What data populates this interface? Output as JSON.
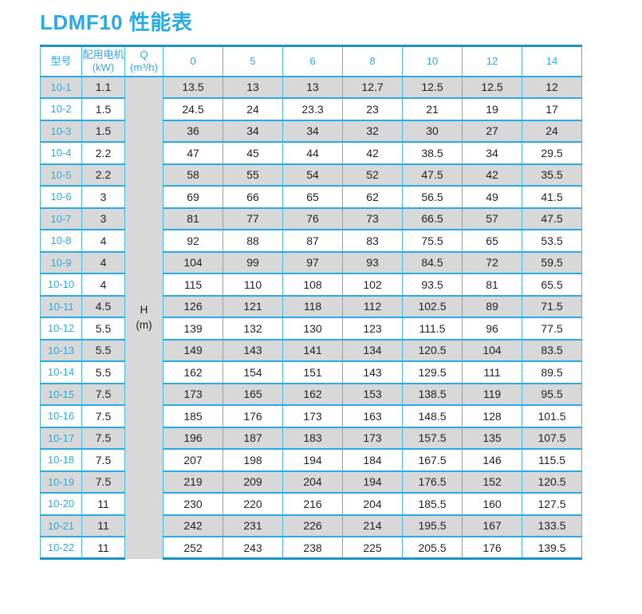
{
  "title": "LDMF10 性能表",
  "colors": {
    "accent": "#29abe2",
    "grid_line": "#4cb6e5",
    "thick_border": "#1b92c7",
    "row_shade": "#d8d8d8",
    "text_dark": "#231f20"
  },
  "table": {
    "model_header": "型号",
    "motor_header_line1": "配用电机",
    "motor_header_line2": "(kW)",
    "flow_header_line1": "Q",
    "flow_header_line2": "(m³/h)",
    "flow_columns": [
      "0",
      "5",
      "6",
      "8",
      "10",
      "12",
      "14"
    ],
    "h_label_line1": "H",
    "h_label_line2": "(m)",
    "rows": [
      {
        "model": "10-1",
        "kw": "1.1",
        "values": [
          "13.5",
          "13",
          "13",
          "12.7",
          "12.5",
          "12.5",
          "12"
        ]
      },
      {
        "model": "10-2",
        "kw": "1.5",
        "values": [
          "24.5",
          "24",
          "23.3",
          "23",
          "21",
          "19",
          "17"
        ]
      },
      {
        "model": "10-3",
        "kw": "1.5",
        "values": [
          "36",
          "34",
          "34",
          "32",
          "30",
          "27",
          "24"
        ]
      },
      {
        "model": "10-4",
        "kw": "2.2",
        "values": [
          "47",
          "45",
          "44",
          "42",
          "38.5",
          "34",
          "29.5"
        ]
      },
      {
        "model": "10-5",
        "kw": "2.2",
        "values": [
          "58",
          "55",
          "54",
          "52",
          "47.5",
          "42",
          "35.5"
        ]
      },
      {
        "model": "10-6",
        "kw": "3",
        "values": [
          "69",
          "66",
          "65",
          "62",
          "56.5",
          "49",
          "41.5"
        ]
      },
      {
        "model": "10-7",
        "kw": "3",
        "values": [
          "81",
          "77",
          "76",
          "73",
          "66.5",
          "57",
          "47.5"
        ]
      },
      {
        "model": "10-8",
        "kw": "4",
        "values": [
          "92",
          "88",
          "87",
          "83",
          "75.5",
          "65",
          "53.5"
        ]
      },
      {
        "model": "10-9",
        "kw": "4",
        "values": [
          "104",
          "99",
          "97",
          "93",
          "84.5",
          "72",
          "59.5"
        ]
      },
      {
        "model": "10-10",
        "kw": "4",
        "values": [
          "115",
          "110",
          "108",
          "102",
          "93.5",
          "81",
          "65.5"
        ]
      },
      {
        "model": "10-11",
        "kw": "4.5",
        "values": [
          "126",
          "121",
          "118",
          "112",
          "102.5",
          "89",
          "71.5"
        ]
      },
      {
        "model": "10-12",
        "kw": "5.5",
        "values": [
          "139",
          "132",
          "130",
          "123",
          "111.5",
          "96",
          "77.5"
        ]
      },
      {
        "model": "10-13",
        "kw": "5.5",
        "values": [
          "149",
          "143",
          "141",
          "134",
          "120.5",
          "104",
          "83.5"
        ]
      },
      {
        "model": "10-14",
        "kw": "5.5",
        "values": [
          "162",
          "154",
          "151",
          "143",
          "129.5",
          "111",
          "89.5"
        ]
      },
      {
        "model": "10-15",
        "kw": "7.5",
        "values": [
          "173",
          "165",
          "162",
          "153",
          "138.5",
          "119",
          "95.5"
        ]
      },
      {
        "model": "10-16",
        "kw": "7.5",
        "values": [
          "185",
          "176",
          "173",
          "163",
          "148.5",
          "128",
          "101.5"
        ]
      },
      {
        "model": "10-17",
        "kw": "7.5",
        "values": [
          "196",
          "187",
          "183",
          "173",
          "157.5",
          "135",
          "107.5"
        ]
      },
      {
        "model": "10-18",
        "kw": "7.5",
        "values": [
          "207",
          "198",
          "194",
          "184",
          "167.5",
          "146",
          "115.5"
        ]
      },
      {
        "model": "10-19",
        "kw": "7.5",
        "values": [
          "219",
          "209",
          "204",
          "194",
          "176.5",
          "152",
          "120.5"
        ]
      },
      {
        "model": "10-20",
        "kw": "11",
        "values": [
          "230",
          "220",
          "216",
          "204",
          "185.5",
          "160",
          "127.5"
        ]
      },
      {
        "model": "10-21",
        "kw": "11",
        "values": [
          "242",
          "231",
          "226",
          "214",
          "195.5",
          "167",
          "133.5"
        ]
      },
      {
        "model": "10-22",
        "kw": "11",
        "values": [
          "252",
          "243",
          "238",
          "225",
          "205.5",
          "176",
          "139.5"
        ]
      }
    ]
  }
}
